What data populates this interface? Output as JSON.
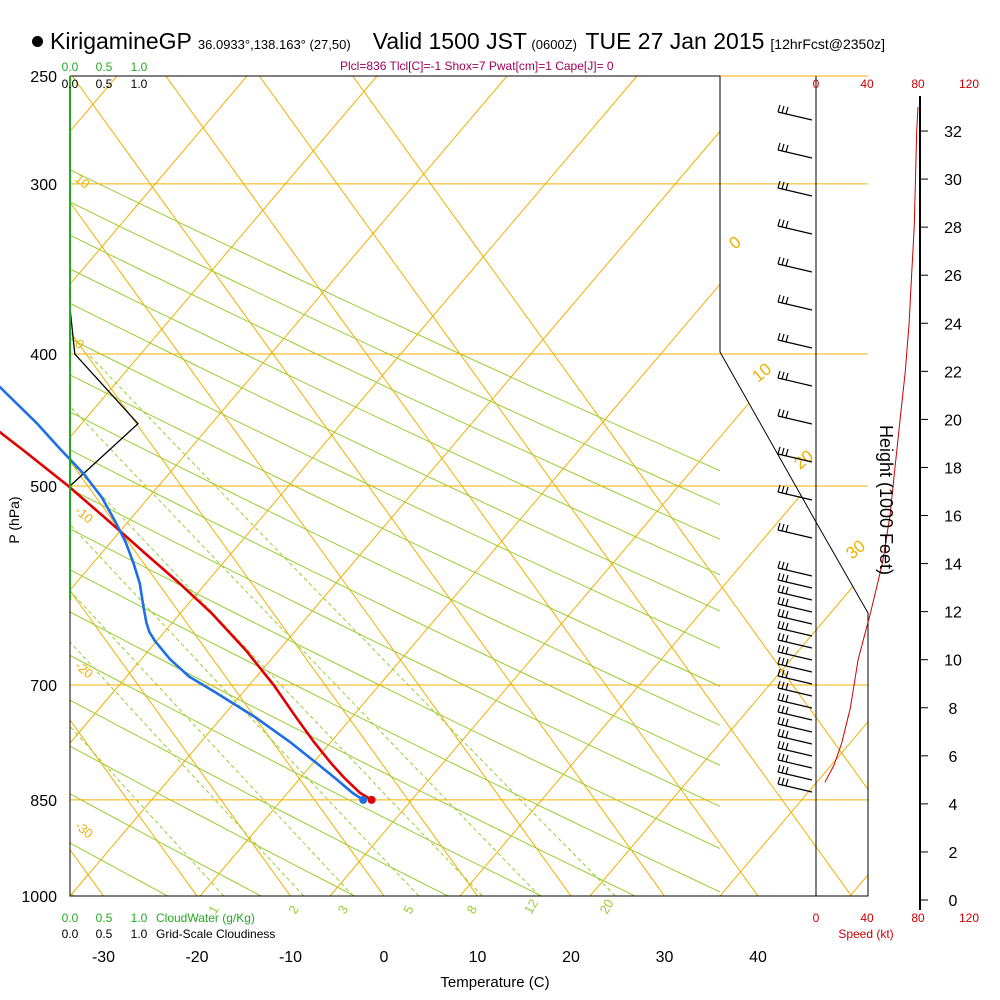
{
  "header": {
    "station": "KirigamineGP",
    "coords": "36.0933°,138.163° (27,50)",
    "valid": "Valid 1500 JST",
    "zulu": "(0600Z)",
    "date": "TUE 27 Jan 2015",
    "forecast": "[12hrFcst@2350z]"
  },
  "indices": "Plcl=836 Tlcl[C]=-1 Shox=7 Pwat[cm]=1 Cape[J]= 0",
  "colors": {
    "temperature": "#e00000",
    "dewpoint": "#1e6fe6",
    "isotherm": "#f0b000",
    "mixing_ratio": "#9acd32",
    "cloud": "#22aa22",
    "wind_speed": "#cc0000"
  },
  "axes": {
    "x_label": "Temperature (C)",
    "y_label": "P (hPa)",
    "height_label": "Height (1000 Feet)",
    "speed_label": "Speed (kt)",
    "cloud_water_label": "CloudWater (g/Kg)",
    "cloudiness_label": "Grid-Scale Cloudiness"
  },
  "chart_data": {
    "type": "line",
    "title": "KirigamineGP Valid 1500 JST TUE 27 Jan 2015",
    "xlabel": "Temperature (C)",
    "ylabel": "P (hPa)",
    "x_ticks": [
      "-30",
      "-20",
      "-10",
      "0",
      "10",
      "20",
      "30",
      "40"
    ],
    "x_ticks_values": [
      -30,
      -20,
      -10,
      0,
      10,
      20,
      30,
      40
    ],
    "pressure_ticks": [
      "250",
      "300",
      "400",
      "500",
      "700",
      "850",
      "1000"
    ],
    "pressure_ticks_values": [
      250,
      300,
      400,
      500,
      700,
      850,
      1000
    ],
    "height_ticks": [
      "0",
      "2",
      "4",
      "6",
      "8",
      "10",
      "12",
      "14",
      "16",
      "18",
      "20",
      "22",
      "24",
      "26",
      "28",
      "30",
      "32"
    ],
    "height_ticks_values": [
      0,
      2,
      4,
      6,
      8,
      10,
      12,
      14,
      16,
      18,
      20,
      22,
      24,
      26,
      28,
      30,
      32
    ],
    "cloud_ticks": [
      "0.0",
      "0.5",
      "1.0"
    ],
    "speed_ticks": [
      "0",
      "40",
      "80",
      "120"
    ],
    "speed_ticks_values": [
      0,
      40,
      80,
      120
    ],
    "theta_labels": [
      "0",
      "10",
      "20",
      "30"
    ],
    "thetae_labels": [
      "10",
      "0",
      "-10",
      "-20",
      "-30"
    ],
    "mixing_ratio_labels": [
      "1",
      "2",
      "3",
      "5",
      "8",
      "12",
      "20"
    ],
    "surface_pressure": 850,
    "series": [
      {
        "name": "Temperature",
        "p": [
          850,
          840,
          820,
          800,
          770,
          740,
          700,
          660,
          620,
          590,
          560,
          530,
          500,
          470,
          440,
          410,
          380,
          350,
          330,
          310,
          290,
          275,
          263
        ],
        "t": [
          6.1,
          5.4,
          4.9,
          4.6,
          4.4,
          4.4,
          4.5,
          4.2,
          3.4,
          2.3,
          0.9,
          -0.5,
          -2.1,
          -4.2,
          -6.6,
          -9.1,
          -11.8,
          -14.6,
          -16.7,
          -18.5,
          -20.0,
          -20.9,
          -21.2
        ]
      },
      {
        "name": "Dewpoint",
        "p": [
          850,
          840,
          820,
          800,
          770,
          740,
          710,
          690,
          670,
          650,
          640,
          630,
          610,
          590,
          570,
          550,
          530,
          510,
          490,
          470,
          450,
          420,
          400,
          380,
          360,
          340,
          320,
          300,
          280,
          265
        ],
        "t": [
          5.2,
          4.6,
          3.9,
          3.1,
          1.8,
          0.1,
          -2.2,
          -3.9,
          -4.6,
          -4.8,
          -4.7,
          -4.3,
          -3.2,
          -2.0,
          -1.1,
          -0.3,
          0.2,
          0.6,
          0.5,
          -0.1,
          -0.6,
          -1.9,
          -3.2,
          -4.3,
          -5.8,
          -6.9,
          -7.7,
          -8.2,
          -9.0,
          -9.7
        ]
      }
    ],
    "cloudiness": {
      "p": [
        370,
        400,
        450,
        500
      ],
      "fraction": [
        0.0,
        0.07,
        1.0,
        0.0
      ]
    },
    "wind_speed": {
      "height_kft": [
        4.9,
        5.6,
        6.5,
        8.0,
        10.0,
        12.0,
        14.0,
        16.0,
        18.0,
        20.0,
        22.0,
        24.0,
        26.0,
        28.0,
        30.0,
        32.0,
        33.0
      ],
      "speed_kt": [
        7,
        14,
        20,
        27,
        33,
        43,
        52,
        58,
        62,
        66,
        70,
        73,
        75,
        77,
        78,
        79,
        80
      ]
    }
  }
}
